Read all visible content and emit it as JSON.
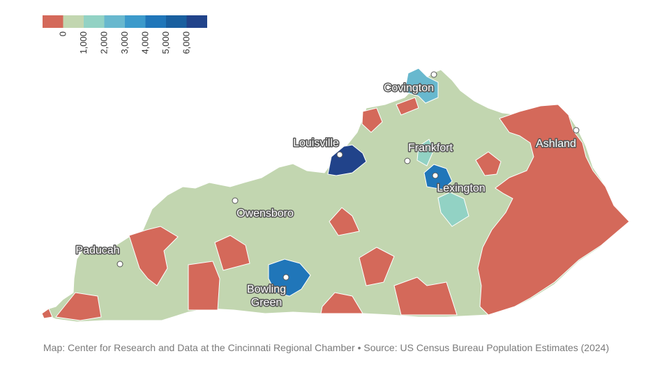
{
  "legend": {
    "colors": [
      "#d4695a",
      "#c2d6b0",
      "#92d2c4",
      "#68b8ce",
      "#3c9acb",
      "#2076b9",
      "#195f9f",
      "#21438a"
    ],
    "labels": [
      "0",
      "1,000",
      "2,000",
      "3,000",
      "4,000",
      "5,000",
      "6,000"
    ]
  },
  "colors": {
    "negative": "#d4695a",
    "base": "#c2d6b0",
    "light_teal": "#92d2c4",
    "mid_teal": "#68b8ce",
    "blue": "#2076b9",
    "dark_blue": "#21438a",
    "border": "#ffffff"
  },
  "cities": [
    {
      "name": "Covington"
    },
    {
      "name": "Louisville"
    },
    {
      "name": "Frankfort"
    },
    {
      "name": "Ashland"
    },
    {
      "name": "Lexington"
    },
    {
      "name": "Owensboro"
    },
    {
      "name": "Paducah"
    },
    {
      "name": "Bowling Green"
    }
  ],
  "footer": {
    "credit": "Map: Center for Research and Data at the Cincinnati Regional Chamber • Source: US Census Bureau Population Estimates (2024)"
  }
}
